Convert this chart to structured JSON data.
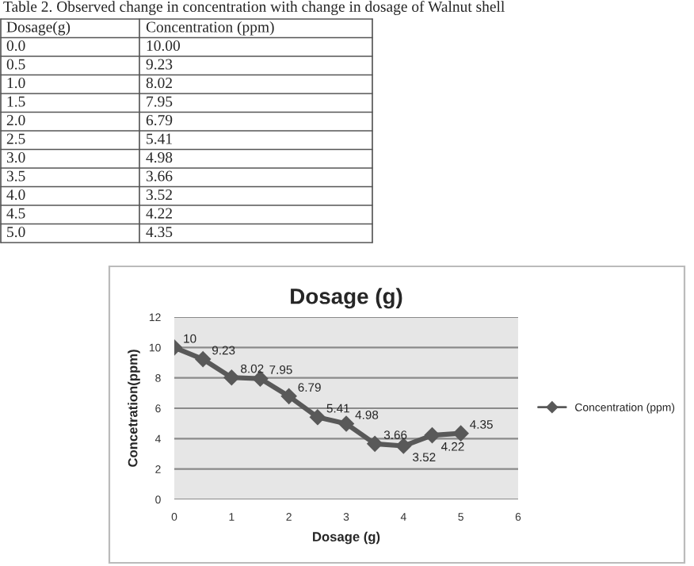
{
  "chart_data": {
    "type": "line",
    "title": "Dosage (g)",
    "xlabel": "Dosage (g)",
    "ylabel": "Concetration(ppm)",
    "annotations": [
      "Table 2. Observed change in concentration with change in dosage of Walnut shell",
      "Dosage(g)",
      "Concentration (ppm)",
      "0.0",
      "10.00",
      "0.5",
      "9.23",
      "1.0",
      "8.02",
      "1.5",
      "7.95",
      "2.0",
      "6.79",
      "2.5",
      "5.41",
      "3.0",
      "4.98",
      "3.5",
      "3.66",
      "4.0",
      "3.52",
      "4.5",
      "4.22",
      "5.0",
      "4.35"
    ],
    "x": [
      0.0,
      0.5,
      1.0,
      1.5,
      2.0,
      2.5,
      3.0,
      3.5,
      4.0,
      4.5,
      5.0
    ],
    "series": [
      {
        "name": "Concentration (ppm)",
        "color": "#595959",
        "values": [
          10,
          9.23,
          8.02,
          7.95,
          6.79,
          5.41,
          4.98,
          3.66,
          3.52,
          4.22,
          4.35
        ]
      }
    ],
    "xlim": [
      0,
      6
    ],
    "xticks": [
      0,
      1,
      2,
      3,
      4,
      5,
      6
    ],
    "ylim": [
      0,
      12
    ],
    "yticks": [
      0,
      2,
      4,
      6,
      8,
      10,
      12
    ],
    "grid": "y",
    "legend": "right",
    "marker": "diamond",
    "line_style": "solid",
    "data_labels": true
  }
}
